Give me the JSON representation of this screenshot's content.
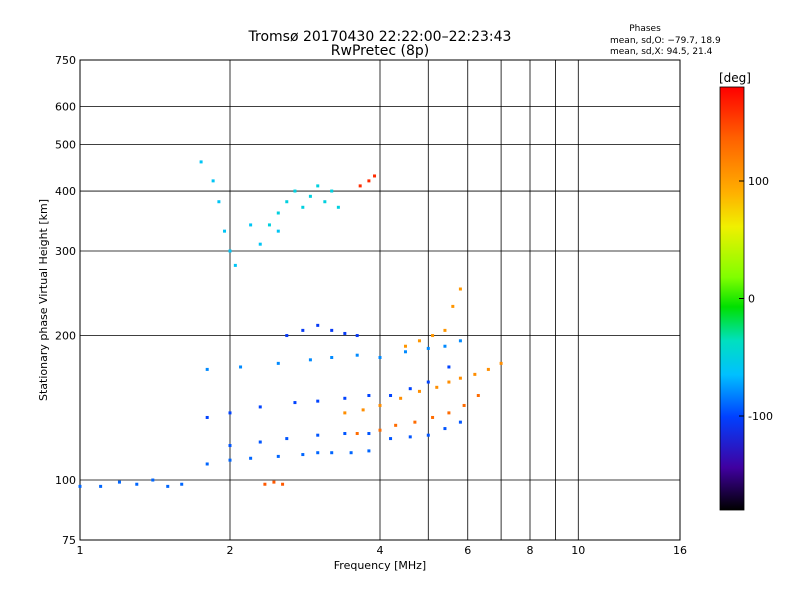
{
  "header": {
    "title_line1": "Tromsø 20170430 22:22:00–22:23:43",
    "title_line2": "RwPretec (8p)",
    "phases_title": "Phases",
    "phases_line1": "mean, sd,O: −79.7, 18.9",
    "phases_line2": "mean, sd,X:  94.5, 21.4"
  },
  "chart_data": {
    "type": "scatter",
    "xlabel": "Frequency [MHz]",
    "ylabel": "Stationary phase Virtual Height [km]",
    "xscale": "log",
    "yscale": "log",
    "xlim": [
      1,
      16
    ],
    "ylim": [
      75,
      750
    ],
    "xticks": [
      1,
      2,
      4,
      6,
      8,
      10,
      16
    ],
    "xtick_labels": [
      "1",
      "2",
      "4",
      "6",
      "8",
      "10",
      "16"
    ],
    "x_extra_gridlines": [
      5,
      7,
      9
    ],
    "yticks": [
      75,
      100,
      200,
      300,
      400,
      500,
      600,
      750
    ],
    "ytick_labels": [
      "75",
      "100",
      "200",
      "300",
      "400",
      "500",
      "600",
      "750"
    ],
    "grid": true,
    "colorbar": {
      "label": "[deg]",
      "range": [
        -180,
        180
      ],
      "ticks": [
        100,
        0,
        -100
      ],
      "tick_labels": [
        "100",
        "0",
        "-100"
      ]
    },
    "trace_colors": {
      "O_mode_low": "#2050e0",
      "O_mode_mid": "#3aa8e8",
      "X_mode": "#f0e000",
      "X_mode_warm": "#ffa000",
      "outlier_red": "#ff3000"
    },
    "series": [
      {
        "mode": "O",
        "x": [
          1.0,
          1.1,
          1.2,
          1.3,
          1.4,
          1.5,
          1.6,
          1.8,
          2.0,
          2.2,
          2.5,
          2.8,
          3.0,
          3.2,
          3.5,
          3.8
        ],
        "y": [
          97,
          97,
          99,
          98,
          100,
          97,
          98,
          108,
          110,
          111,
          112,
          113,
          114,
          114,
          114,
          115
        ],
        "phase": -90
      },
      {
        "mode": "O",
        "x": [
          2.0,
          2.3,
          2.6,
          3.0,
          3.4,
          3.8,
          4.2,
          4.6,
          5.0,
          5.4,
          5.8
        ],
        "y": [
          118,
          120,
          122,
          124,
          125,
          125,
          122,
          123,
          124,
          128,
          132
        ],
        "phase": -95
      },
      {
        "mode": "O",
        "x": [
          1.8,
          2.0,
          2.3,
          2.7,
          3.0,
          3.4,
          3.8,
          4.2,
          4.6,
          5.0,
          5.5
        ],
        "y": [
          135,
          138,
          142,
          145,
          146,
          148,
          150,
          150,
          155,
          160,
          172
        ],
        "phase": -100
      },
      {
        "mode": "O",
        "x": [
          1.8,
          2.1,
          2.5,
          2.9,
          3.2,
          3.6,
          4.0,
          4.5,
          5.0,
          5.4,
          5.8
        ],
        "y": [
          170,
          172,
          175,
          178,
          180,
          182,
          180,
          185,
          188,
          190,
          195
        ],
        "phase": -80
      },
      {
        "mode": "O",
        "x": [
          2.6,
          2.8,
          3.0,
          3.2,
          3.4,
          3.6
        ],
        "y": [
          200,
          205,
          210,
          205,
          202,
          200
        ],
        "phase": -105
      },
      {
        "mode": "O",
        "x": [
          1.75,
          1.85,
          1.9,
          1.95,
          2.0,
          2.05,
          2.2,
          2.3,
          2.5
        ],
        "y": [
          460,
          420,
          380,
          330,
          300,
          280,
          340,
          310,
          330
        ],
        "phase": -60
      },
      {
        "mode": "O",
        "x": [
          2.4,
          2.5,
          2.6,
          2.7,
          2.8,
          2.9,
          3.0,
          3.1,
          3.2,
          3.3
        ],
        "y": [
          340,
          360,
          380,
          400,
          370,
          390,
          410,
          380,
          400,
          370
        ],
        "phase": -50
      },
      {
        "mode": "X",
        "x": [
          3.4,
          3.7,
          4.0,
          4.4,
          4.8,
          5.2,
          5.5,
          5.8,
          6.2,
          6.6,
          7.0
        ],
        "y": [
          138,
          140,
          143,
          148,
          153,
          156,
          160,
          163,
          166,
          170,
          175
        ],
        "phase": 110
      },
      {
        "mode": "X",
        "x": [
          3.6,
          4.0,
          4.3,
          4.7,
          5.1,
          5.5,
          5.9,
          6.3
        ],
        "y": [
          125,
          127,
          130,
          132,
          135,
          138,
          143,
          150
        ],
        "phase": 130
      },
      {
        "mode": "X",
        "x": [
          4.5,
          4.8,
          5.1,
          5.4,
          5.6,
          5.8
        ],
        "y": [
          190,
          195,
          200,
          205,
          230,
          250
        ],
        "phase": 105
      },
      {
        "mode": "X",
        "x": [
          2.35,
          2.45,
          2.55
        ],
        "y": [
          98,
          99,
          98
        ],
        "phase": 140
      },
      {
        "mode": "X",
        "x": [
          3.65,
          3.8,
          3.9
        ],
        "y": [
          410,
          420,
          430
        ],
        "phase": 160
      }
    ]
  }
}
